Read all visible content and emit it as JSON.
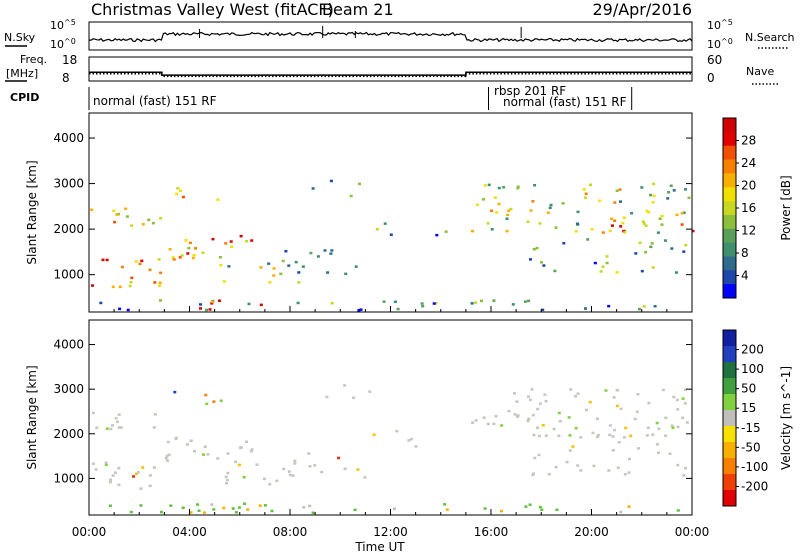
{
  "chart_data": {
    "type": "heatmap",
    "title": "Christmas Valley West (fitACF)",
    "beam_label": "Beam 21",
    "date": "29/Apr/2016",
    "xlabel": "Time UT",
    "x_ticks": [
      "00:00",
      "04:00",
      "08:00",
      "12:00",
      "16:00",
      "20:00",
      "00:00"
    ],
    "x_range_hours": [
      0,
      24
    ],
    "top_panels": {
      "nsky": {
        "label": "N.Sky",
        "right_label": "N.Search",
        "left_ticks": [
          "10^5",
          "10^0"
        ],
        "right_ticks": [
          "10^5",
          "10^0"
        ]
      },
      "freq": {
        "label_lines": [
          "Freq.",
          "[MHz]"
        ],
        "left_ticks": [
          "18",
          "8"
        ],
        "right_ticks": [
          "60",
          "0"
        ],
        "right_label": "Nave",
        "freq_segments_mhz": [
          {
            "start_h": 0.0,
            "end_h": 2.9,
            "value": 11.5
          },
          {
            "start_h": 2.9,
            "end_h": 15.0,
            "value": 10.2
          },
          {
            "start_h": 15.0,
            "end_h": 24.0,
            "value": 11.5
          }
        ],
        "nave_segments": [
          {
            "start_h": 0.0,
            "end_h": 2.9,
            "value": 17
          },
          {
            "start_h": 2.9,
            "end_h": 15.0,
            "value": 10
          },
          {
            "start_h": 15.0,
            "end_h": 24.0,
            "value": 17
          }
        ]
      },
      "cpid": {
        "label": "CPID",
        "modes": [
          {
            "text": "normal (fast) 151 RF",
            "start_h": 0.0
          },
          {
            "text": "rbsp 201 RF",
            "start_h": 15.9
          },
          {
            "text": "normal (fast) 151 RF",
            "start_h": 16.3
          }
        ],
        "boundaries_h": [
          15.9,
          21.6
        ]
      }
    },
    "power_panel": {
      "ylabel": "Slant Range [km]",
      "y_ticks": [
        1000,
        2000,
        3000,
        4000
      ],
      "y_range_km": [
        180,
        4550
      ],
      "colorbar_label": "Power [dB]",
      "colorbar_ticks": [
        4,
        8,
        12,
        16,
        20,
        24,
        28
      ],
      "colorbar_range": [
        0,
        32
      ],
      "colors": [
        "#0000ff",
        "#1d47a8",
        "#2e6b8c",
        "#3f8f6e",
        "#5aa05c",
        "#8cbf3a",
        "#c8d820",
        "#f0e000",
        "#f8b000",
        "#f88000",
        "#f05000",
        "#e00000",
        "#d00000"
      ]
    },
    "velocity_panel": {
      "ylabel": "Slant Range [km]",
      "y_ticks": [
        1000,
        2000,
        3000,
        4000
      ],
      "y_range_km": [
        180,
        4550
      ],
      "colorbar_label": "Velocity [m s^-1]",
      "colorbar_ticks": [
        "200",
        "100",
        "50",
        "15",
        "-15",
        "-50",
        "-100",
        "-200"
      ],
      "colors": [
        "#1020a0",
        "#2040c0",
        "#207040",
        "#40a040",
        "#80d040",
        "#c0c0b8",
        "#f8e000",
        "#f8b000",
        "#f88000",
        "#f04000",
        "#e00000"
      ]
    }
  }
}
